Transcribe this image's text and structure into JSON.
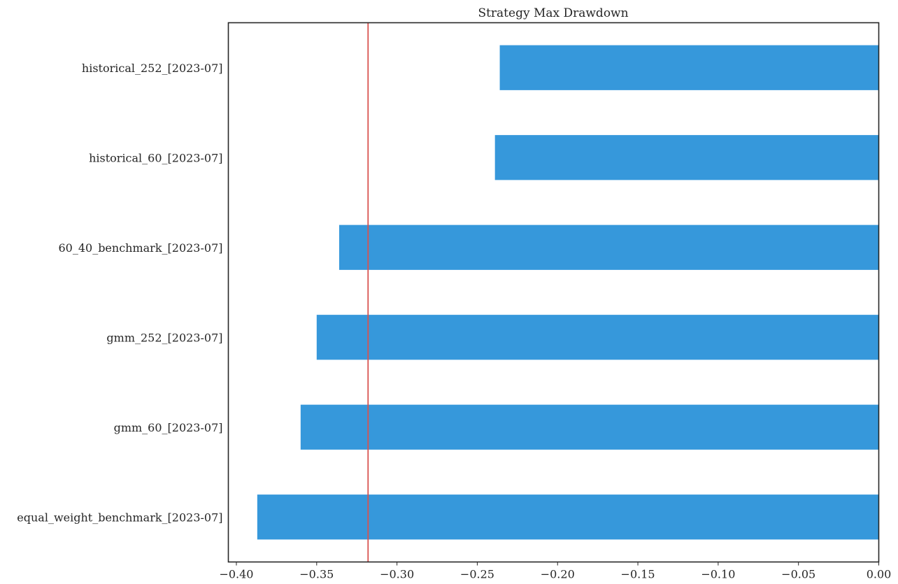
{
  "chart_data": {
    "type": "bar",
    "orientation": "horizontal",
    "title": "Strategy Max Drawdown",
    "xlabel": "",
    "ylabel": "",
    "categories": [
      "historical_252_[2023-07]",
      "historical_60_[2023-07]",
      "60_40_benchmark_[2023-07]",
      "gmm_252_[2023-07]",
      "gmm_60_[2023-07]",
      "equal_weight_benchmark_[2023-07]"
    ],
    "values": [
      -0.236,
      -0.239,
      -0.336,
      -0.35,
      -0.36,
      -0.387
    ],
    "xlim": [
      -0.405,
      0.0
    ],
    "xticks": [
      -0.4,
      -0.35,
      -0.3,
      -0.25,
      -0.2,
      -0.15,
      -0.1,
      -0.05,
      0.0
    ],
    "xtick_labels": [
      "−0.40",
      "−0.35",
      "−0.30",
      "−0.25",
      "−0.20",
      "−0.15",
      "−0.10",
      "−0.05",
      "0.00"
    ],
    "reference_line": {
      "x": -0.318,
      "color": "#d9534f"
    },
    "bar_color": "#3698db",
    "grid": false,
    "legend": "none"
  }
}
